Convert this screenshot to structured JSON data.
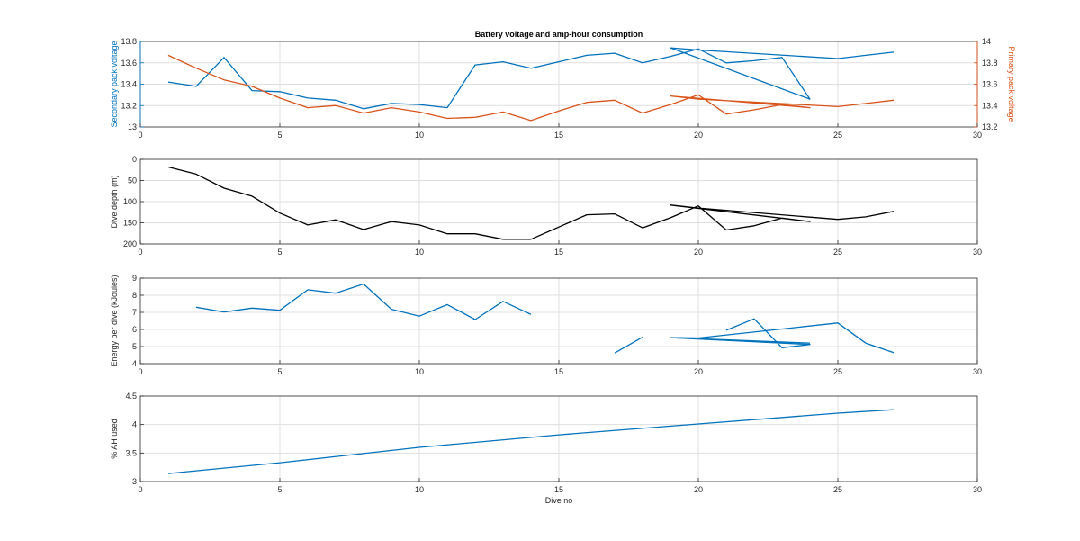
{
  "chart_data": {
    "type": "line",
    "title": "Battery voltage and amp-hour consumption",
    "xlabel": "Dive no",
    "xlim": [
      0,
      30
    ],
    "x_ticks": [
      0,
      5,
      10,
      15,
      20,
      25,
      30
    ],
    "grid": true,
    "colors": {
      "blue": "#0072bd",
      "orange": "#d95319",
      "black": "#000000"
    },
    "panels": [
      {
        "id": "voltage",
        "ylabel": "Secondary pack voltage",
        "ylim": [
          13,
          13.8
        ],
        "y_ticks": [
          13,
          13.2,
          13.4,
          13.6,
          13.8
        ],
        "y2label": "Primary pack voltage",
        "y2lim": [
          13.2,
          14
        ],
        "y2_ticks": [
          13.2,
          13.4,
          13.6,
          13.8,
          14
        ],
        "series": [
          {
            "axis": "left",
            "color": "#0072bd",
            "x": [
              1,
              2,
              3,
              4,
              5,
              6,
              7,
              8,
              9,
              10,
              11,
              12,
              13,
              14,
              15,
              16,
              17,
              18,
              19,
              20,
              21,
              22,
              23,
              24,
              19,
              20,
              25,
              26,
              27
            ],
            "y": [
              13.42,
              13.38,
              13.65,
              13.34,
              13.33,
              13.27,
              13.25,
              13.17,
              13.22,
              13.21,
              13.18,
              13.58,
              13.61,
              13.55,
              13.61,
              13.67,
              13.69,
              13.6,
              13.66,
              13.73,
              13.6,
              13.62,
              13.65,
              13.26,
              13.74,
              13.72,
              13.64,
              13.67,
              13.7
            ]
          },
          {
            "axis": "right",
            "color": "#d95319",
            "x": [
              1,
              2,
              3,
              4,
              5,
              6,
              7,
              8,
              9,
              10,
              11,
              12,
              13,
              14,
              15,
              16,
              17,
              18,
              19,
              20,
              21,
              22,
              23,
              24,
              19,
              20,
              25,
              26,
              27
            ],
            "y": [
              13.87,
              13.75,
              13.64,
              13.58,
              13.47,
              13.38,
              13.4,
              13.33,
              13.38,
              13.34,
              13.28,
              13.29,
              13.34,
              13.26,
              13.35,
              13.43,
              13.45,
              13.33,
              13.41,
              13.5,
              13.32,
              13.36,
              13.41,
              13.38,
              13.49,
              13.46,
              13.39,
              13.42,
              13.45
            ]
          }
        ]
      },
      {
        "id": "depth",
        "ylabel": "Dive depth (m)",
        "ylim": [
          0,
          200
        ],
        "y_reversed": true,
        "y_ticks": [
          0,
          50,
          100,
          150,
          200
        ],
        "series": [
          {
            "axis": "left",
            "color": "#000000",
            "x": [
              1,
              2,
              3,
              4,
              5,
              6,
              7,
              8,
              9,
              10,
              11,
              12,
              13,
              14,
              15,
              16,
              17,
              18,
              19,
              20,
              21,
              22,
              23,
              24,
              19,
              20,
              25,
              26,
              27
            ],
            "y": [
              18,
              35,
              68,
              87,
              127,
              155,
              143,
              166,
              147,
              155,
              176,
              176,
              189,
              189,
              160,
              131,
              129,
              162,
              138,
              110,
              167,
              157,
              139,
              147,
              108,
              115,
              142,
              136,
              123
            ]
          }
        ]
      },
      {
        "id": "energy",
        "ylabel": "Energy per dive (kJoules)",
        "ylim": [
          4,
          9
        ],
        "y_ticks": [
          4,
          5,
          6,
          7,
          8,
          9
        ],
        "series": [
          {
            "axis": "left",
            "color": "#0072bd",
            "x": [
              2,
              3,
              4,
              5,
              6,
              7,
              8,
              9,
              10,
              11,
              12,
              13,
              14
            ],
            "y": [
              7.3,
              7.02,
              7.25,
              7.12,
              8.32,
              8.12,
              8.66,
              7.18,
              6.78,
              7.45,
              6.58,
              7.64,
              6.88
            ]
          },
          {
            "axis": "left",
            "color": "#0072bd",
            "x": [
              17,
              18
            ],
            "y": [
              4.62,
              5.55
            ]
          },
          {
            "axis": "left",
            "color": "#0072bd",
            "x": [
              21,
              22,
              23,
              24,
              19,
              20,
              25,
              26,
              27
            ],
            "y": [
              5.95,
              6.62,
              4.93,
              5.12,
              5.52,
              5.5,
              6.38,
              5.2,
              4.64
            ]
          },
          {
            "axis": "left",
            "color": "#0072bd",
            "x": [
              19,
              24
            ],
            "y": [
              5.52,
              5.2
            ]
          }
        ]
      },
      {
        "id": "ah_used",
        "ylabel": "% AH used",
        "ylim": [
          3,
          4.5
        ],
        "y_ticks": [
          3,
          3.5,
          4,
          4.5
        ],
        "series": [
          {
            "axis": "left",
            "color": "#0072bd",
            "x": [
              1,
              5,
              10,
              15,
              20,
              25,
              27
            ],
            "y": [
              3.14,
              3.33,
              3.6,
              3.82,
              4.01,
              4.2,
              4.26
            ]
          }
        ]
      }
    ]
  }
}
